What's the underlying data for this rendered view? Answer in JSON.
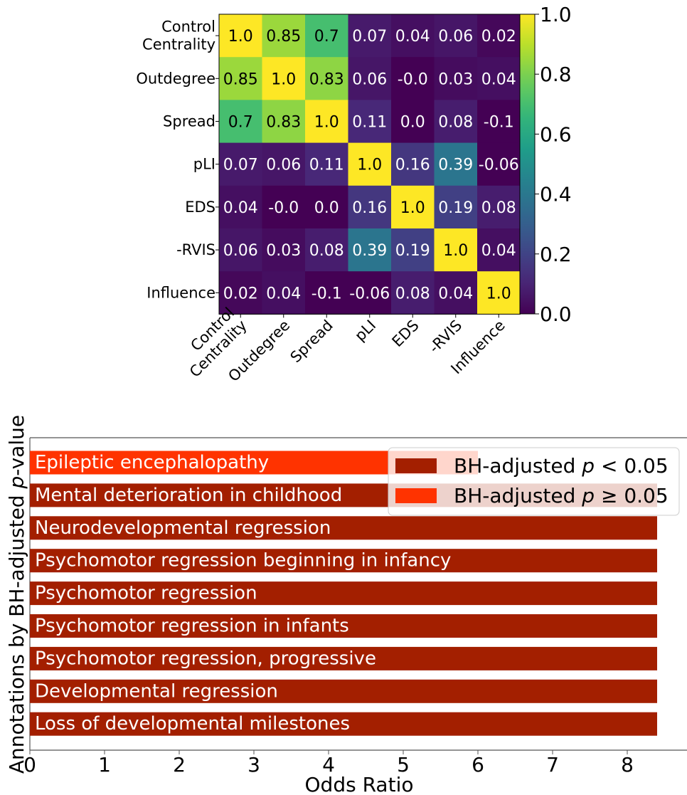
{
  "chart_data": [
    {
      "type": "heatmap",
      "labels": [
        "Control\nCentrality",
        "Outdegree",
        "Spread",
        "pLI",
        "EDS",
        "-RVIS",
        "Influence"
      ],
      "cell_text": [
        [
          "1.0",
          "0.85",
          "0.7",
          "0.07",
          "0.04",
          "0.06",
          "0.02"
        ],
        [
          "0.85",
          "1.0",
          "0.83",
          "0.06",
          "-0.0",
          "0.03",
          "0.04"
        ],
        [
          "0.7",
          "0.83",
          "1.0",
          "0.11",
          "0.0",
          "0.08",
          "-0.1"
        ],
        [
          "0.07",
          "0.06",
          "0.11",
          "1.0",
          "0.16",
          "0.39",
          "-0.06"
        ],
        [
          "0.04",
          "-0.0",
          "0.0",
          "0.16",
          "1.0",
          "0.19",
          "0.08"
        ],
        [
          "0.06",
          "0.03",
          "0.08",
          "0.39",
          "0.19",
          "1.0",
          "0.04"
        ],
        [
          "0.02",
          "0.04",
          "-0.1",
          "-0.06",
          "0.08",
          "0.04",
          "1.0"
        ]
      ],
      "colorbar": {
        "range": [
          0.0,
          1.0
        ],
        "ticks": [
          "0.0",
          "0.2",
          "0.4",
          "0.6",
          "0.8",
          "1.0"
        ],
        "colormap": "viridis"
      }
    },
    {
      "type": "bar",
      "orientation": "horizontal",
      "categories": [
        "Epileptic encephalopathy",
        "Mental deterioration in childhood",
        "Neurodevelopmental regression",
        "Psychomotor regression beginning in infancy",
        "Psychomotor regression",
        "Psychomotor regression in infants",
        "Psychomotor regression, progressive",
        "Developmental regression",
        "Loss of developmental milestones"
      ],
      "values": [
        6.0,
        8.4,
        8.4,
        8.4,
        8.4,
        8.4,
        8.4,
        8.4,
        8.4
      ],
      "significant": [
        false,
        true,
        true,
        true,
        true,
        true,
        true,
        true,
        true
      ],
      "xlabel": "Odds Ratio",
      "ylabel": "Annotations by BH-adjusted p-value",
      "xlim": [
        0,
        8.8
      ],
      "xticks": [
        "0",
        "1",
        "2",
        "3",
        "4",
        "5",
        "6",
        "7",
        "8"
      ],
      "colors": {
        "significant": "#a31f00",
        "not_significant": "#ff3300"
      },
      "legend": {
        "placement": "top-right",
        "entries": [
          "BH-adjusted p < 0.05",
          "BH-adjusted p ≥ 0.05"
        ]
      }
    }
  ]
}
